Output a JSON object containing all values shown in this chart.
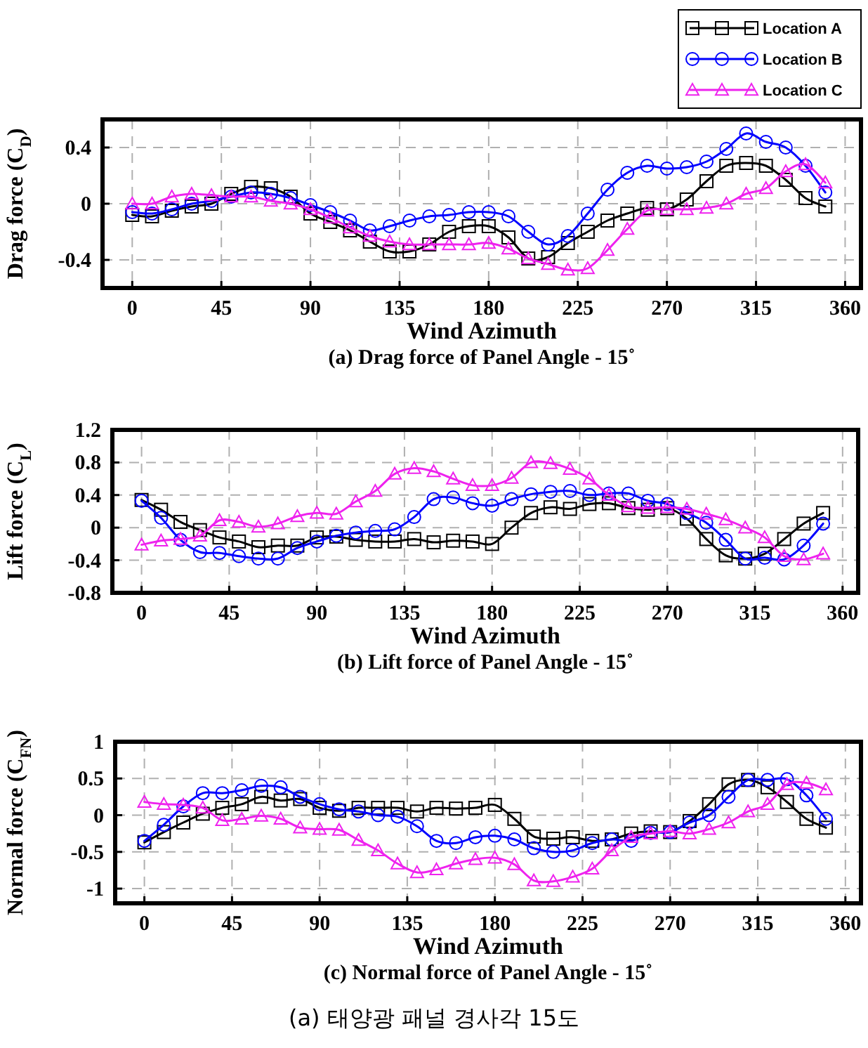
{
  "chart_data": [
    {
      "type": "line",
      "title": "(a) Drag force of Panel Angle - 15˚",
      "xlabel": "Wind Azimuth",
      "ylabel": "Drag force (C$_{D}$)",
      "x": [
        0,
        10,
        20,
        30,
        40,
        50,
        60,
        70,
        80,
        90,
        100,
        110,
        120,
        130,
        140,
        150,
        160,
        170,
        180,
        190,
        200,
        210,
        220,
        230,
        240,
        250,
        260,
        270,
        280,
        290,
        300,
        310,
        320,
        330,
        340,
        350
      ],
      "xlim": [
        -15,
        368
      ],
      "xticks": [
        0,
        45,
        90,
        135,
        180,
        225,
        270,
        315,
        360
      ],
      "ylim": [
        -0.6,
        0.6
      ],
      "yticks": [
        -0.4,
        0,
        0.4
      ],
      "grid": true,
      "legend": "top right",
      "line_style": "solid",
      "series": [
        {
          "name": "Location A",
          "color": "#000000",
          "marker": "square",
          "values": [
            -0.08,
            -0.09,
            -0.05,
            -0.02,
            0.0,
            0.07,
            0.12,
            0.11,
            0.05,
            -0.07,
            -0.13,
            -0.19,
            -0.27,
            -0.34,
            -0.34,
            -0.29,
            -0.2,
            -0.16,
            -0.16,
            -0.24,
            -0.39,
            -0.38,
            -0.28,
            -0.2,
            -0.12,
            -0.07,
            -0.03,
            -0.04,
            0.03,
            0.16,
            0.27,
            0.29,
            0.27,
            0.17,
            0.04,
            -0.02
          ]
        },
        {
          "name": "Location B",
          "color": "#0000ff",
          "marker": "circle",
          "values": [
            -0.06,
            -0.07,
            -0.04,
            0.0,
            0.02,
            0.05,
            0.08,
            0.07,
            0.04,
            -0.01,
            -0.06,
            -0.12,
            -0.19,
            -0.16,
            -0.12,
            -0.09,
            -0.08,
            -0.06,
            -0.06,
            -0.09,
            -0.2,
            -0.29,
            -0.23,
            -0.07,
            0.1,
            0.22,
            0.27,
            0.25,
            0.26,
            0.3,
            0.39,
            0.5,
            0.44,
            0.4,
            0.27,
            0.08
          ]
        },
        {
          "name": "Location C",
          "color": "#ee22ee",
          "marker": "triangle",
          "values": [
            0.0,
            0.0,
            0.05,
            0.07,
            0.06,
            0.05,
            0.05,
            0.02,
            0.0,
            -0.04,
            -0.1,
            -0.17,
            -0.23,
            -0.27,
            -0.29,
            -0.29,
            -0.29,
            -0.29,
            -0.28,
            -0.32,
            -0.39,
            -0.43,
            -0.47,
            -0.46,
            -0.33,
            -0.18,
            -0.05,
            -0.04,
            -0.04,
            -0.03,
            0.0,
            0.07,
            0.11,
            0.23,
            0.28,
            0.15
          ]
        }
      ]
    },
    {
      "type": "line",
      "title": "(b) Lift force of Panel Angle - 15˚",
      "xlabel": "Wind Azimuth",
      "ylabel": "Lift force (C$_{L}$)",
      "x": [
        0,
        10,
        20,
        30,
        40,
        50,
        60,
        70,
        80,
        90,
        100,
        110,
        120,
        130,
        140,
        150,
        160,
        170,
        180,
        190,
        200,
        210,
        220,
        230,
        240,
        250,
        260,
        270,
        280,
        290,
        300,
        310,
        320,
        330,
        340,
        350
      ],
      "xlim": [
        -15,
        368
      ],
      "xticks": [
        0,
        45,
        90,
        135,
        180,
        225,
        270,
        315,
        360
      ],
      "ylim": [
        -0.8,
        1.2
      ],
      "yticks": [
        -0.8,
        -0.4,
        0,
        0.4,
        0.8,
        1.2
      ],
      "grid": true,
      "line_style": "solid",
      "series": [
        {
          "color": "#000000",
          "marker": "square",
          "values": [
            0.34,
            0.22,
            0.07,
            -0.03,
            -0.12,
            -0.17,
            -0.24,
            -0.22,
            -0.22,
            -0.12,
            -0.11,
            -0.15,
            -0.17,
            -0.17,
            -0.14,
            -0.18,
            -0.16,
            -0.17,
            -0.2,
            0.0,
            0.18,
            0.25,
            0.23,
            0.29,
            0.3,
            0.24,
            0.22,
            0.24,
            0.11,
            -0.14,
            -0.34,
            -0.38,
            -0.32,
            -0.14,
            0.05,
            0.18
          ]
        },
        {
          "color": "#0000ff",
          "marker": "circle",
          "values": [
            0.33,
            0.12,
            -0.15,
            -0.3,
            -0.31,
            -0.35,
            -0.38,
            -0.38,
            -0.25,
            -0.17,
            -0.1,
            -0.06,
            -0.04,
            -0.02,
            0.13,
            0.35,
            0.37,
            0.3,
            0.27,
            0.35,
            0.41,
            0.44,
            0.45,
            0.4,
            0.42,
            0.42,
            0.33,
            0.29,
            0.18,
            0.06,
            -0.15,
            -0.38,
            -0.37,
            -0.39,
            -0.22,
            0.05
          ]
        },
        {
          "color": "#ee22ee",
          "marker": "triangle",
          "values": [
            -0.21,
            -0.16,
            -0.14,
            -0.1,
            0.09,
            0.07,
            0.01,
            0.05,
            0.14,
            0.18,
            0.17,
            0.32,
            0.45,
            0.66,
            0.73,
            0.69,
            0.6,
            0.52,
            0.52,
            0.61,
            0.8,
            0.79,
            0.72,
            0.6,
            0.4,
            0.26,
            0.24,
            0.25,
            0.23,
            0.17,
            0.1,
            0.0,
            -0.12,
            -0.35,
            -0.39,
            -0.32
          ]
        }
      ]
    },
    {
      "type": "line",
      "title": "(c) Normal force of Panel Angle - 15˚",
      "xlabel": "Wind Azimuth",
      "ylabel": "Normal force (C$_{FN}$)",
      "x": [
        0,
        10,
        20,
        30,
        40,
        50,
        60,
        70,
        80,
        90,
        100,
        110,
        120,
        130,
        140,
        150,
        160,
        170,
        180,
        190,
        200,
        210,
        220,
        230,
        240,
        250,
        260,
        270,
        280,
        290,
        300,
        310,
        320,
        330,
        340,
        350
      ],
      "xlim": [
        -15,
        368
      ],
      "xticks": [
        0,
        45,
        90,
        135,
        180,
        225,
        270,
        315,
        360
      ],
      "ylim": [
        -1.2,
        1
      ],
      "yticks": [
        -1,
        -0.5,
        0,
        0.5,
        1
      ],
      "grid": true,
      "line_style": "solid",
      "annotations": [
        "(a) 태양광 패널 경사각 15도"
      ],
      "series": [
        {
          "color": "#000000",
          "marker": "square",
          "values": [
            -0.37,
            -0.23,
            -0.1,
            0.02,
            0.1,
            0.15,
            0.25,
            0.2,
            0.22,
            0.1,
            0.06,
            0.1,
            0.1,
            0.1,
            0.05,
            0.1,
            0.09,
            0.1,
            0.14,
            -0.05,
            -0.29,
            -0.32,
            -0.3,
            -0.35,
            -0.33,
            -0.25,
            -0.22,
            -0.23,
            -0.08,
            0.15,
            0.42,
            0.48,
            0.38,
            0.18,
            -0.05,
            -0.17
          ]
        },
        {
          "color": "#0000ff",
          "marker": "circle",
          "values": [
            -0.35,
            -0.13,
            0.12,
            0.3,
            0.3,
            0.34,
            0.4,
            0.38,
            0.25,
            0.15,
            0.08,
            0.05,
            0.0,
            -0.02,
            -0.15,
            -0.35,
            -0.38,
            -0.3,
            -0.28,
            -0.33,
            -0.45,
            -0.5,
            -0.48,
            -0.38,
            -0.33,
            -0.35,
            -0.24,
            -0.23,
            -0.1,
            0.0,
            0.25,
            0.48,
            0.48,
            0.49,
            0.27,
            -0.05
          ]
        },
        {
          "color": "#ee22ee",
          "marker": "triangle",
          "values": [
            0.18,
            0.15,
            0.14,
            0.1,
            -0.07,
            -0.05,
            -0.01,
            -0.05,
            -0.17,
            -0.19,
            -0.2,
            -0.34,
            -0.48,
            -0.66,
            -0.78,
            -0.74,
            -0.66,
            -0.6,
            -0.58,
            -0.67,
            -0.89,
            -0.9,
            -0.84,
            -0.73,
            -0.48,
            -0.3,
            -0.25,
            -0.22,
            -0.25,
            -0.19,
            -0.1,
            0.05,
            0.15,
            0.42,
            0.44,
            0.35
          ]
        }
      ]
    }
  ]
}
